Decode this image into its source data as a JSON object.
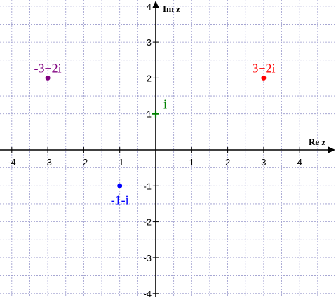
{
  "chart_data": {
    "type": "scatter",
    "title": "",
    "xlabel": "Re z",
    "ylabel": "Im z",
    "xlim": [
      -4.3,
      4.9
    ],
    "ylim": [
      -4.7,
      4.95
    ],
    "grid": true,
    "x_ticks": [
      -4,
      -3,
      -2,
      -1,
      1,
      2,
      3,
      4
    ],
    "y_ticks": [
      -4,
      -3,
      -2,
      -1,
      1,
      2,
      3,
      4
    ],
    "points": [
      {
        "label": "-3+2i",
        "x": -3,
        "y": 2,
        "color": "#800080",
        "label_pos": "above"
      },
      {
        "label": "3+2i",
        "x": 3,
        "y": 2,
        "color": "#ff0000",
        "label_pos": "above"
      },
      {
        "label": "i",
        "x": 0,
        "y": 1,
        "color": "#008000",
        "label_pos": "above-right"
      },
      {
        "label": "-1-i",
        "x": -1,
        "y": -1,
        "color": "#0000ff",
        "label_pos": "below"
      }
    ]
  },
  "colors": {
    "grid": "#9999cc",
    "axis": "#000000"
  }
}
